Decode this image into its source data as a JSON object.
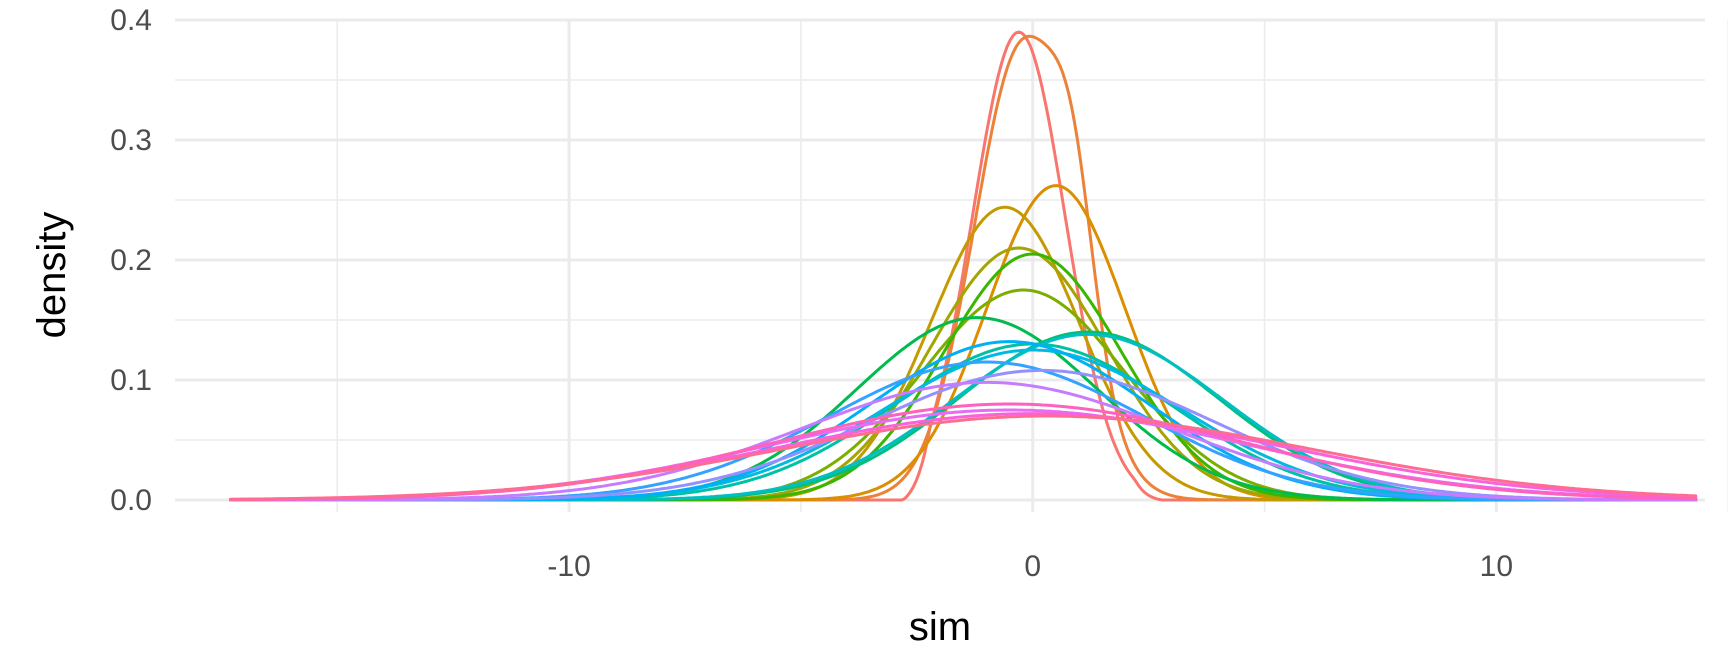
{
  "chart_data": {
    "type": "line",
    "xlabel": "sim",
    "ylabel": "density",
    "xlim": [
      -18.5,
      14.5
    ],
    "ylim": [
      -0.01,
      0.4
    ],
    "x_ticks": [
      -10,
      0,
      10
    ],
    "x_tick_labels": [
      "-10",
      "0",
      "10"
    ],
    "x_minor_ticks": [
      -15,
      -5,
      5,
      15
    ],
    "y_ticks": [
      0.0,
      0.1,
      0.2,
      0.3,
      0.4
    ],
    "y_tick_labels": [
      "0.0",
      "0.1",
      "0.2",
      "0.3",
      "0.4"
    ],
    "y_minor_ticks": [
      0.05,
      0.15,
      0.25,
      0.35
    ],
    "grid": true,
    "legend": "none",
    "x_range": [
      -17.3,
      14.3
    ],
    "series": [
      {
        "color": "#F8766D",
        "peak_x": -0.3,
        "peak_y": 0.39,
        "sd": 1.0,
        "left_x": -2.8,
        "right_x": 2.8
      },
      {
        "color": "#EC8239",
        "peak_x": -0.2,
        "peak_y": 0.38,
        "sd": 1.05,
        "shoulder_x": 0.9,
        "shoulder_y": 0.315
      },
      {
        "color": "#DB8E00",
        "peak_x": 0.5,
        "peak_y": 0.262,
        "sd": 1.5
      },
      {
        "color": "#C49A00",
        "peak_x": -0.6,
        "peak_y": 0.244,
        "sd": 1.6
      },
      {
        "color": "#A3A500",
        "peak_x": -0.3,
        "peak_y": 0.21,
        "sd": 1.9
      },
      {
        "color": "#7CAE00",
        "peak_x": -0.2,
        "peak_y": 0.175,
        "sd": 2.2
      },
      {
        "color": "#39B600",
        "peak_x": 0.0,
        "peak_y": 0.205,
        "sd": 1.9
      },
      {
        "color": "#00BB4E",
        "peak_x": -1.2,
        "peak_y": 0.152,
        "sd": 2.6
      },
      {
        "color": "#00BF7D",
        "peak_x": 1.2,
        "peak_y": 0.14,
        "sd": 2.8
      },
      {
        "color": "#00C1A3",
        "peak_x": 0.0,
        "peak_y": 0.13,
        "sd": 3.0
      },
      {
        "color": "#00BFC4",
        "peak_x": 1.2,
        "peak_y": 0.138,
        "sd": 2.9
      },
      {
        "color": "#00BAE0",
        "peak_x": 0.0,
        "peak_y": 0.125,
        "sd": 3.2
      },
      {
        "color": "#00B0F6",
        "peak_x": -0.5,
        "peak_y": 0.132,
        "sd": 3.0
      },
      {
        "color": "#35A2FF",
        "peak_x": -1.0,
        "peak_y": 0.115,
        "sd": 3.4
      },
      {
        "color": "#9590FF",
        "peak_x": 0.2,
        "peak_y": 0.108,
        "sd": 3.7
      },
      {
        "color": "#C77CFF",
        "peak_x": -1.0,
        "peak_y": 0.098,
        "sd": 4.0
      },
      {
        "color": "#E76BF3",
        "peak_x": -0.5,
        "peak_y": 0.075,
        "sd": 5.2
      },
      {
        "color": "#FA62DB",
        "peak_x": 0.0,
        "peak_y": 0.072,
        "sd": 5.5
      },
      {
        "color": "#FF62BC",
        "peak_x": -0.5,
        "peak_y": 0.08,
        "sd": 5.0
      },
      {
        "color": "#FF6C91",
        "peak_x": 0.3,
        "peak_y": 0.07,
        "sd": 5.7
      }
    ]
  }
}
